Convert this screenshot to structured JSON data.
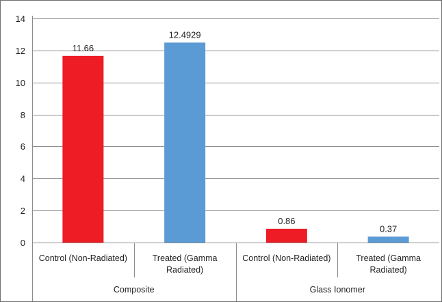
{
  "chart_data": {
    "type": "bar",
    "groups": [
      {
        "label": "Composite",
        "bars": [
          {
            "label_lines": [
              "Control (Non-Radiated)"
            ],
            "value": 11.66,
            "data_label": "11.66",
            "color": "#ee1c25"
          },
          {
            "label_lines": [
              "Treated (Gamma",
              "Radiated)"
            ],
            "value": 12.4929,
            "data_label": "12.4929",
            "color": "#5b9bd5"
          }
        ]
      },
      {
        "label": "Glass Ionomer",
        "bars": [
          {
            "label_lines": [
              "Control (Non-Radiated)"
            ],
            "value": 0.86,
            "data_label": "0.86",
            "color": "#ee1c25"
          },
          {
            "label_lines": [
              "Treated (Gamma",
              "Radiated)"
            ],
            "value": 0.37,
            "data_label": "0.37",
            "color": "#5b9bd5"
          }
        ]
      }
    ],
    "yticks": [
      "0",
      "2",
      "4",
      "6",
      "8",
      "10",
      "12",
      "14"
    ],
    "ylim": [
      0,
      14
    ],
    "grid": true
  }
}
